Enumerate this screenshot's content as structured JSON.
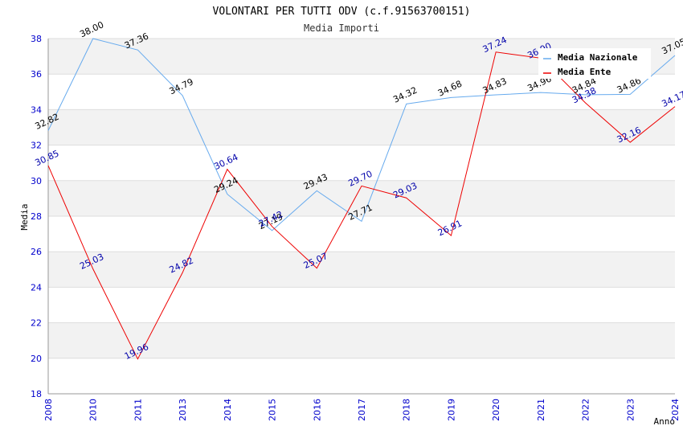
{
  "chart_data": {
    "type": "line",
    "title": "VOLONTARI PER TUTTI ODV (c.f.91563700151)",
    "subtitle": "Media Importi",
    "xlabel": "Anno",
    "ylabel": "Media",
    "ylim": [
      18,
      38
    ],
    "yticks": [
      "18",
      "20",
      "22",
      "24",
      "26",
      "28",
      "30",
      "32",
      "34",
      "36",
      "38"
    ],
    "categories": [
      "2008",
      "2010",
      "2011",
      "2013",
      "2014",
      "2015",
      "2016",
      "2017",
      "2018",
      "2019",
      "2020",
      "2021",
      "2022",
      "2023",
      "2024"
    ],
    "series": [
      {
        "name": "Media Nazionale",
        "color": "#66aaee",
        "values": [
          32.82,
          38.0,
          37.36,
          34.79,
          29.24,
          27.19,
          29.43,
          27.71,
          34.32,
          34.68,
          34.83,
          34.96,
          34.84,
          34.86,
          37.05
        ],
        "labels": [
          "32.82",
          "38.00",
          "37.36",
          "34.79",
          "29.24",
          "27.19",
          "29.43",
          "27.71",
          "34.32",
          "34.68",
          "34.83",
          "34.96",
          "34.84",
          "34.86",
          "37.05"
        ]
      },
      {
        "name": "Media Ente",
        "color": "#ee0000",
        "values": [
          30.85,
          25.03,
          19.96,
          24.82,
          30.64,
          27.42,
          25.07,
          29.7,
          29.03,
          26.91,
          37.24,
          36.9,
          34.38,
          32.16,
          34.17
        ],
        "labels": [
          "30.85",
          "25.03",
          "19.96",
          "24.82",
          "30.64",
          "27.42",
          "25.07",
          "29.70",
          "29.03",
          "26.91",
          "37.24",
          "36.90",
          "34.38",
          "32.16",
          "34.17"
        ]
      }
    ],
    "legend_position": "top-right",
    "grid": true
  }
}
